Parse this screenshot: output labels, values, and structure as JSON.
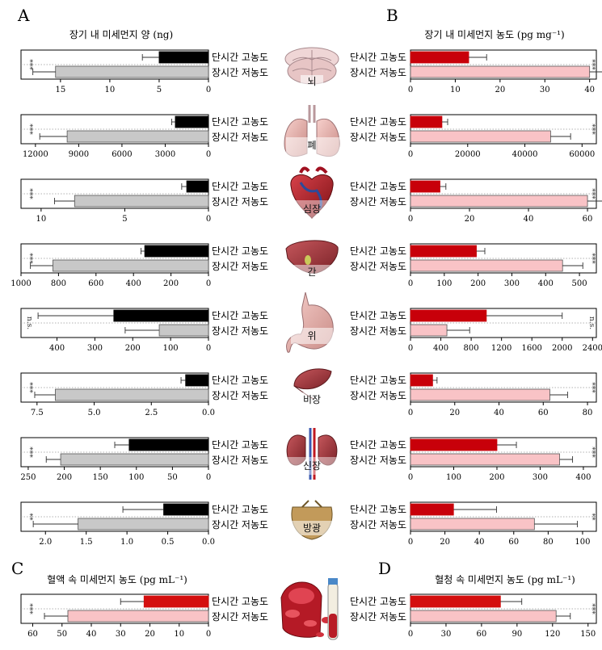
{
  "panels": {
    "A": {
      "letter": "A",
      "title": "장기 내 미세먼지 양 (ng)"
    },
    "B": {
      "letter": "B",
      "title": "장기 내 미세먼지 농도 (pg mg⁻¹)"
    },
    "C": {
      "letter": "C",
      "title": "혈액 속 미세먼지 농도 (pg mL⁻¹)"
    },
    "D": {
      "letter": "D",
      "title": "혈청 속 미세먼지 농도 (pg mL⁻¹)"
    }
  },
  "labels": {
    "short": "단시간 고농도",
    "long": "장시간 저농도"
  },
  "colors": {
    "left_short": "#000000",
    "left_long": "#c8c8c8",
    "right_short": "#c8000a",
    "right_long": "#f9c3c6",
    "blood_short": "#d40f0f",
    "blood_long": "#f9c3c6"
  },
  "chart_data": [
    {
      "type": "bar",
      "panel": "A",
      "organ": "뇌",
      "orientation": "horizontal-reversed",
      "xlim": [
        0,
        19
      ],
      "ticks": [
        "15",
        "10",
        "5",
        "0"
      ],
      "tick_values": [
        15,
        10,
        5,
        0
      ],
      "significance": "***",
      "series": [
        {
          "name": "단시간 고농도",
          "value": 5.0,
          "error": 1.7
        },
        {
          "name": "장시간 저농도",
          "value": 15.5,
          "error": 2.3
        }
      ]
    },
    {
      "type": "bar",
      "panel": "A",
      "organ": "폐",
      "orientation": "horizontal-reversed",
      "xlim": [
        0,
        13000
      ],
      "ticks": [
        "12000",
        "9000",
        "6000",
        "3000",
        "0"
      ],
      "tick_values": [
        12000,
        9000,
        6000,
        3000,
        0
      ],
      "significance": "***",
      "series": [
        {
          "name": "단시간 고농도",
          "value": 2300,
          "error": 250
        },
        {
          "name": "장시간 저농도",
          "value": 9800,
          "error": 1900
        }
      ]
    },
    {
      "type": "bar",
      "panel": "A",
      "organ": "심장",
      "orientation": "horizontal-reversed",
      "xlim": [
        0,
        11.2
      ],
      "ticks": [
        "10",
        "5",
        "0"
      ],
      "tick_values": [
        10,
        5,
        0
      ],
      "significance": "***",
      "series": [
        {
          "name": "단시간 고농도",
          "value": 1.3,
          "error": 0.3
        },
        {
          "name": "장시간 저농도",
          "value": 8.0,
          "error": 1.2
        }
      ]
    },
    {
      "type": "bar",
      "panel": "A",
      "organ": "간",
      "orientation": "horizontal-reversed",
      "xlim": [
        0,
        1000
      ],
      "ticks": [
        "1000",
        "800",
        "600",
        "400",
        "200",
        "0"
      ],
      "tick_values": [
        1000,
        800,
        600,
        400,
        200,
        0
      ],
      "significance": "***",
      "series": [
        {
          "name": "단시간 고농도",
          "value": 340,
          "error": 20
        },
        {
          "name": "장시간 저농도",
          "value": 830,
          "error": 120
        }
      ]
    },
    {
      "type": "bar",
      "panel": "A",
      "organ": "위",
      "orientation": "horizontal-reversed",
      "xlim": [
        0,
        495
      ],
      "ticks": [
        "400",
        "300",
        "200",
        "100",
        "0"
      ],
      "tick_values": [
        400,
        300,
        200,
        100,
        0
      ],
      "significance": "n.s.",
      "series": [
        {
          "name": "단시간 고농도",
          "value": 250,
          "error": 200
        },
        {
          "name": "장시간 저농도",
          "value": 130,
          "error": 90
        }
      ]
    },
    {
      "type": "bar",
      "panel": "A",
      "organ": "비장",
      "orientation": "horizontal-reversed",
      "xlim": [
        0,
        8.2
      ],
      "ticks": [
        "7.5",
        "5.0",
        "2.5",
        "0.0"
      ],
      "tick_values": [
        7.5,
        5.0,
        2.5,
        0.0
      ],
      "significance": "***",
      "series": [
        {
          "name": "단시간 고농도",
          "value": 1.0,
          "error": 0.2
        },
        {
          "name": "장시간 저농도",
          "value": 6.7,
          "error": 0.9
        }
      ]
    },
    {
      "type": "bar",
      "panel": "A",
      "organ": "신장",
      "orientation": "horizontal-reversed",
      "xlim": [
        0,
        260
      ],
      "ticks": [
        "250",
        "200",
        "150",
        "100",
        "50",
        "0"
      ],
      "tick_values": [
        250,
        200,
        150,
        100,
        50,
        0
      ],
      "significance": "***",
      "series": [
        {
          "name": "단시간 고농도",
          "value": 110,
          "error": 20
        },
        {
          "name": "장시간 저농도",
          "value": 205,
          "error": 20
        }
      ]
    },
    {
      "type": "bar",
      "panel": "A",
      "organ": "방광",
      "orientation": "horizontal-reversed",
      "xlim": [
        0,
        2.3
      ],
      "ticks": [
        "2.0",
        "1.5",
        "1.0",
        "0.5",
        "0.0"
      ],
      "tick_values": [
        2.0,
        1.5,
        1.0,
        0.5,
        0.0
      ],
      "significance": "**",
      "series": [
        {
          "name": "단시간 고농도",
          "value": 0.55,
          "error": 0.5
        },
        {
          "name": "장시간 저농도",
          "value": 1.6,
          "error": 0.55
        }
      ]
    },
    {
      "type": "bar",
      "panel": "B",
      "organ": "뇌",
      "orientation": "horizontal",
      "xlim": [
        0,
        41.5
      ],
      "ticks": [
        "0",
        "10",
        "20",
        "30",
        "40"
      ],
      "tick_values": [
        0,
        10,
        20,
        30,
        40
      ],
      "significance": "***",
      "series": [
        {
          "name": "단시간 고농도",
          "value": 13,
          "error": 4
        },
        {
          "name": "장시간 저농도",
          "value": 40,
          "error": 6
        }
      ]
    },
    {
      "type": "bar",
      "panel": "B",
      "organ": "폐",
      "orientation": "horizontal",
      "xlim": [
        0,
        65000
      ],
      "ticks": [
        "0",
        "20000",
        "40000",
        "60000"
      ],
      "tick_values": [
        0,
        20000,
        40000,
        60000
      ],
      "significance": "***",
      "series": [
        {
          "name": "단시간 고농도",
          "value": 11000,
          "error": 2000
        },
        {
          "name": "장시간 저농도",
          "value": 49000,
          "error": 7000
        }
      ]
    },
    {
      "type": "bar",
      "panel": "B",
      "organ": "심장",
      "orientation": "horizontal",
      "xlim": [
        0,
        63
      ],
      "ticks": [
        "0",
        "20",
        "40",
        "60"
      ],
      "tick_values": [
        0,
        20,
        40,
        60
      ],
      "significance": "***",
      "series": [
        {
          "name": "단시간 고농도",
          "value": 10,
          "error": 2
        },
        {
          "name": "장시간 저농도",
          "value": 60,
          "error": 7
        }
      ]
    },
    {
      "type": "bar",
      "panel": "B",
      "organ": "간",
      "orientation": "horizontal",
      "xlim": [
        0,
        550
      ],
      "ticks": [
        "0",
        "100",
        "200",
        "300",
        "400",
        "500"
      ],
      "tick_values": [
        0,
        100,
        200,
        300,
        400,
        500
      ],
      "significance": "***",
      "series": [
        {
          "name": "단시간 고농도",
          "value": 195,
          "error": 25
        },
        {
          "name": "장시간 저농도",
          "value": 450,
          "error": 60
        }
      ]
    },
    {
      "type": "bar",
      "panel": "B",
      "organ": "위",
      "orientation": "horizontal",
      "xlim": [
        0,
        2450
      ],
      "ticks": [
        "0",
        "400",
        "800",
        "1200",
        "1600",
        "2000",
        "2400"
      ],
      "tick_values": [
        0,
        400,
        800,
        1200,
        1600,
        2000,
        2400
      ],
      "significance": "n.s.",
      "series": [
        {
          "name": "단시간 고농도",
          "value": 1000,
          "error": 1000
        },
        {
          "name": "장시간 저농도",
          "value": 480,
          "error": 300
        }
      ]
    },
    {
      "type": "bar",
      "panel": "B",
      "organ": "비장",
      "orientation": "horizontal",
      "xlim": [
        0,
        84
      ],
      "ticks": [
        "0",
        "20",
        "40",
        "60",
        "80"
      ],
      "tick_values": [
        0,
        20,
        40,
        60,
        80
      ],
      "significance": "***",
      "series": [
        {
          "name": "단시간 고농도",
          "value": 10,
          "error": 2
        },
        {
          "name": "장시간 저농도",
          "value": 63,
          "error": 8
        }
      ]
    },
    {
      "type": "bar",
      "panel": "B",
      "organ": "신장",
      "orientation": "horizontal",
      "xlim": [
        0,
        430
      ],
      "ticks": [
        "0",
        "100",
        "200",
        "300",
        "400"
      ],
      "tick_values": [
        0,
        100,
        200,
        300,
        400
      ],
      "significance": "***",
      "series": [
        {
          "name": "단시간 고농도",
          "value": 200,
          "error": 45
        },
        {
          "name": "장시간 저농도",
          "value": 345,
          "error": 30
        }
      ]
    },
    {
      "type": "bar",
      "panel": "B",
      "organ": "방광",
      "orientation": "horizontal",
      "xlim": [
        0,
        108
      ],
      "ticks": [
        "0",
        "20",
        "40",
        "60",
        "80",
        "100"
      ],
      "tick_values": [
        0,
        20,
        40,
        60,
        80,
        100
      ],
      "significance": "**",
      "series": [
        {
          "name": "단시간 고농도",
          "value": 25,
          "error": 25
        },
        {
          "name": "장시간 저농도",
          "value": 72,
          "error": 25
        }
      ]
    },
    {
      "type": "bar",
      "panel": "C",
      "organ": "혈액",
      "orientation": "horizontal-reversed",
      "xlim": [
        0,
        64
      ],
      "ticks": [
        "60",
        "50",
        "40",
        "30",
        "20",
        "10",
        "0"
      ],
      "tick_values": [
        60,
        50,
        40,
        30,
        20,
        10,
        0
      ],
      "significance": "***",
      "series": [
        {
          "name": "단시간 고농도",
          "value": 22,
          "error": 8
        },
        {
          "name": "장시간 저농도",
          "value": 48,
          "error": 8
        }
      ]
    },
    {
      "type": "bar",
      "panel": "D",
      "organ": "혈청",
      "orientation": "horizontal",
      "xlim": [
        0,
        157
      ],
      "ticks": [
        "0",
        "30",
        "60",
        "90",
        "120",
        "150"
      ],
      "tick_values": [
        0,
        30,
        60,
        90,
        120,
        150
      ],
      "significance": "***",
      "series": [
        {
          "name": "단시간 고농도",
          "value": 76,
          "error": 18
        },
        {
          "name": "장시간 저농도",
          "value": 123,
          "error": 12
        }
      ]
    }
  ]
}
